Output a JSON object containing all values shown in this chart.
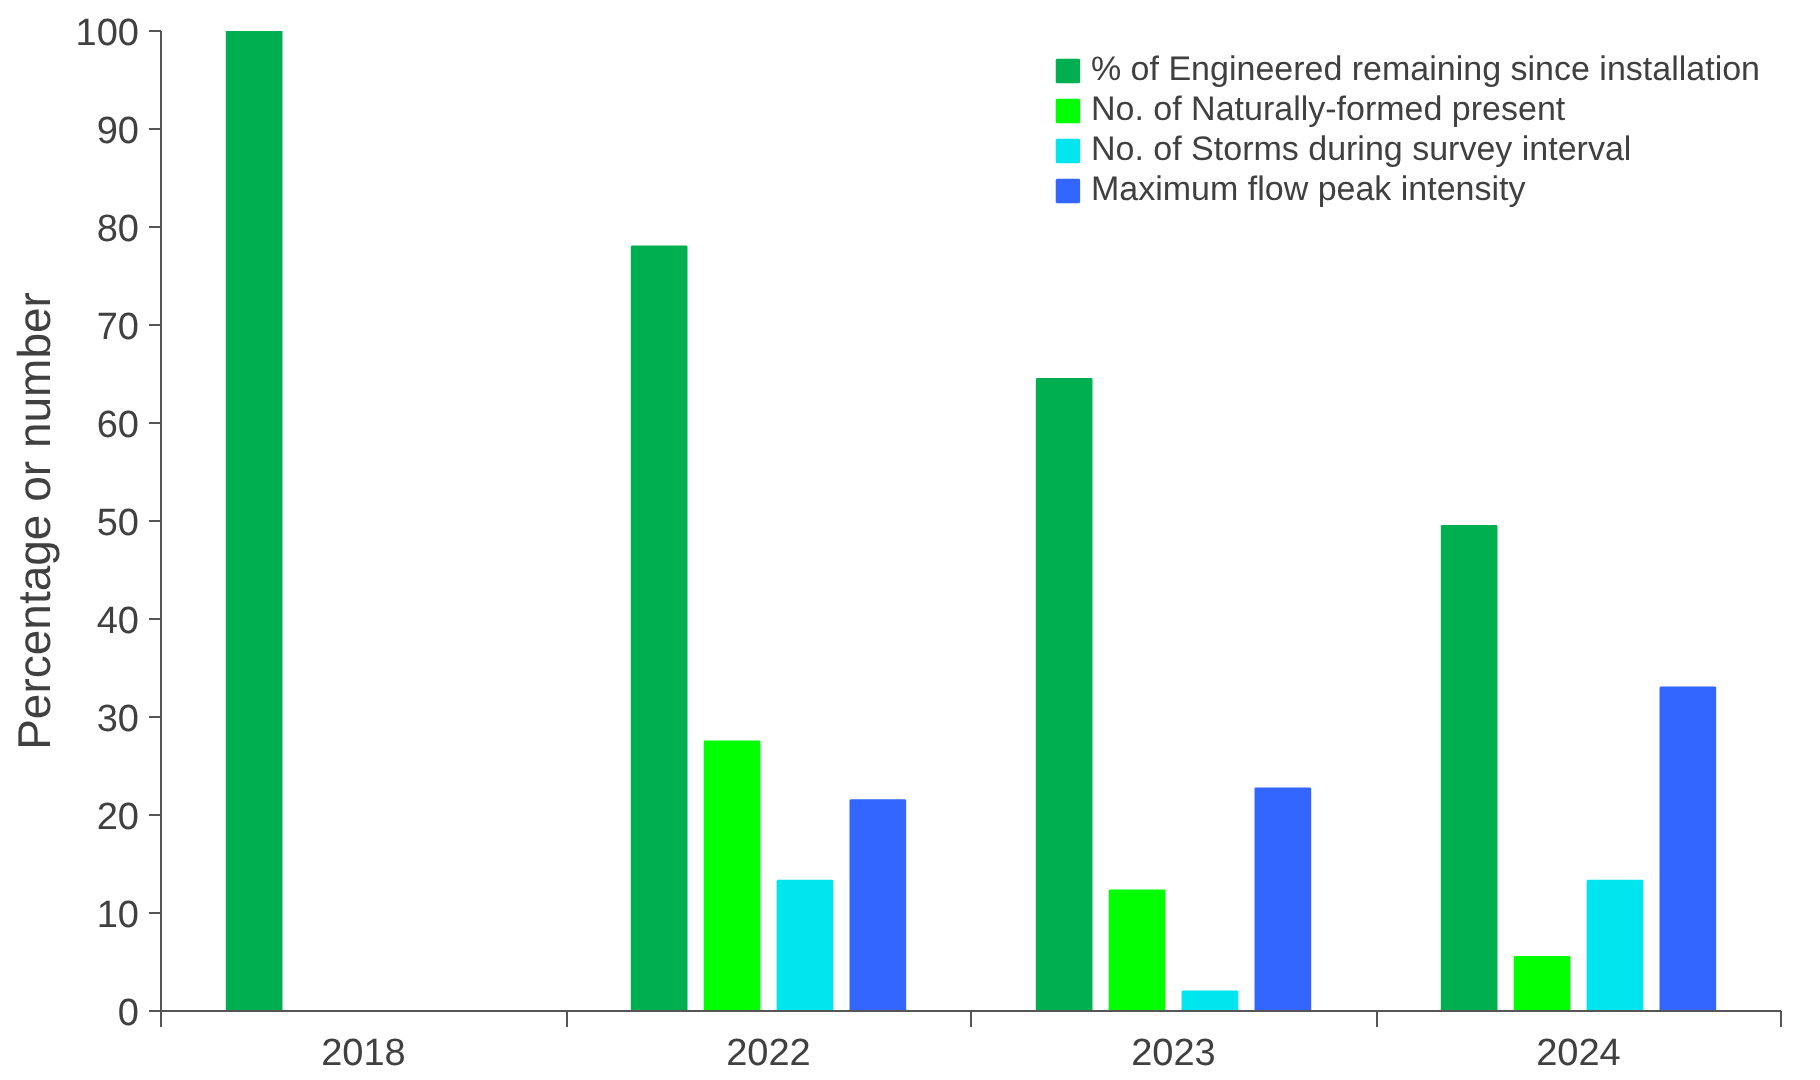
{
  "chart_data": {
    "type": "bar",
    "ylabel": "Percentage or number",
    "categories": [
      "2018",
      "2022",
      "2023",
      "2024"
    ],
    "ylim": [
      0,
      100
    ],
    "yticks": [
      0,
      10,
      20,
      30,
      40,
      50,
      60,
      70,
      80,
      90,
      100
    ],
    "grid": false,
    "legend": "top right",
    "series": [
      {
        "name": "% of Engineered remaining since installation",
        "color": "#00b050",
        "values": [
          100,
          78,
          64.5,
          49.5
        ]
      },
      {
        "name": "No. of Naturally-formed present",
        "color": "#00ff00",
        "values": [
          null,
          27.5,
          12.3,
          5.5
        ]
      },
      {
        "name": "No. of Storms during survey interval",
        "color": "#00e5ee",
        "values": [
          null,
          13.3,
          2,
          13.3
        ]
      },
      {
        "name": "Maximum flow peak intensity",
        "color": "#3366ff",
        "values": [
          null,
          21.5,
          22.7,
          33
        ]
      }
    ]
  }
}
